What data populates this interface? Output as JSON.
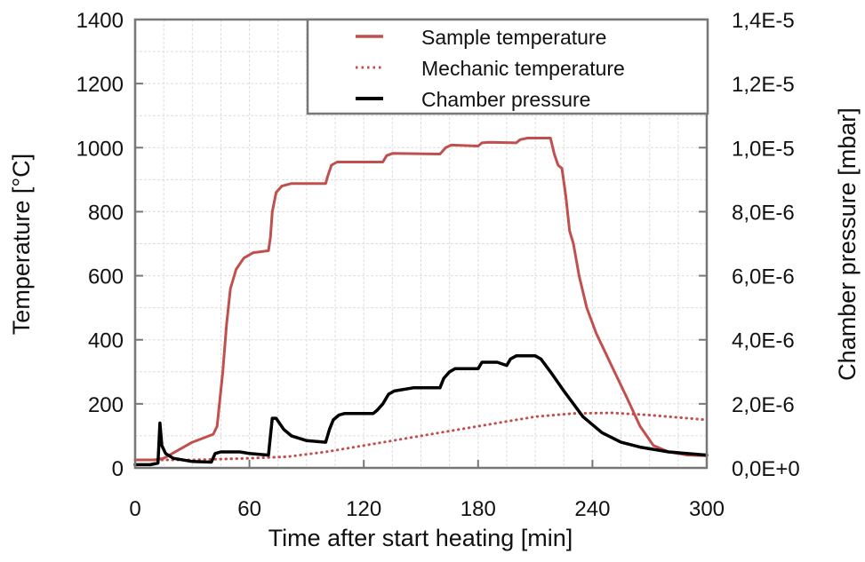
{
  "chart_data": {
    "type": "line",
    "title": "",
    "xlabel": "Time after start heating [min]",
    "ylabel": "Temperature [°C]",
    "y2label": "Chamber pressure [mbar]",
    "xlim": [
      0,
      300
    ],
    "ylim": [
      0,
      1400
    ],
    "y2lim": [
      0,
      1.4e-05
    ],
    "xticks": [
      0,
      60,
      120,
      180,
      240,
      300
    ],
    "yticks": [
      0,
      200,
      400,
      600,
      800,
      1000,
      1200,
      1400
    ],
    "y2ticks": [
      {
        "value": 0,
        "label": "0,0E+0"
      },
      {
        "value": 2e-06,
        "label": "2,0E-6"
      },
      {
        "value": 4e-06,
        "label": "4,0E-6"
      },
      {
        "value": 6e-06,
        "label": "6,0E-6"
      },
      {
        "value": 8e-06,
        "label": "8,0E-6"
      },
      {
        "value": 1e-05,
        "label": "1,0E-5"
      },
      {
        "value": 1.2e-05,
        "label": "1,2E-5"
      },
      {
        "value": 1.4e-05,
        "label": "1,4E-5"
      }
    ],
    "grid": true,
    "legend_position": "top-right",
    "series": [
      {
        "name": "Sample temperature",
        "axis": "left",
        "color": "#c0504d",
        "style": "solid",
        "x": [
          0,
          10,
          15,
          30,
          41,
          43,
          46,
          48,
          50,
          53,
          57,
          62,
          70,
          71,
          72,
          74,
          77,
          82,
          100,
          101,
          103,
          106,
          130,
          132,
          135,
          160,
          163,
          166,
          180,
          182,
          186,
          200,
          202,
          206,
          218,
          220,
          222,
          224,
          226,
          228,
          230,
          233,
          237,
          242,
          250,
          258,
          265,
          272,
          280,
          290,
          300
        ],
        "y": [
          25,
          25,
          30,
          80,
          105,
          130,
          300,
          450,
          560,
          620,
          655,
          672,
          678,
          720,
          800,
          860,
          880,
          888,
          888,
          910,
          945,
          955,
          955,
          975,
          982,
          980,
          1000,
          1008,
          1005,
          1015,
          1017,
          1015,
          1025,
          1030,
          1030,
          980,
          945,
          935,
          850,
          740,
          700,
          600,
          500,
          420,
          320,
          220,
          130,
          70,
          50,
          40,
          38
        ]
      },
      {
        "name": "Mechanic temperature",
        "axis": "left",
        "color": "#c0504d",
        "style": "dotted",
        "x": [
          0,
          30,
          60,
          80,
          100,
          120,
          150,
          180,
          210,
          230,
          250,
          270,
          300
        ],
        "y": [
          25,
          25,
          30,
          35,
          50,
          70,
          100,
          130,
          160,
          170,
          172,
          165,
          150
        ]
      },
      {
        "name": "Chamber pressure",
        "axis": "right",
        "color": "#000000",
        "style": "solid",
        "x": [
          0,
          8,
          12,
          13,
          14,
          16,
          20,
          30,
          40,
          42,
          45,
          55,
          60,
          70,
          71,
          72,
          74,
          78,
          82,
          90,
          100,
          102,
          104,
          107,
          110,
          125,
          127,
          130,
          133,
          136,
          146,
          160,
          162,
          165,
          168,
          180,
          182,
          190,
          195,
          197,
          200,
          210,
          213,
          218,
          225,
          235,
          245,
          255,
          265,
          280,
          300
        ],
        "y": [
          1e-07,
          1e-07,
          1.5e-07,
          1.4e-06,
          7e-07,
          4.5e-07,
          3e-07,
          2e-07,
          1.8e-07,
          4.5e-07,
          5e-07,
          5e-07,
          4.5e-07,
          4e-07,
          1e-06,
          1.55e-06,
          1.55e-06,
          1.2e-06,
          1e-06,
          8.5e-07,
          8e-07,
          1.2e-06,
          1.5e-06,
          1.65e-06,
          1.7e-06,
          1.7e-06,
          1.8e-06,
          2e-06,
          2.3e-06,
          2.4e-06,
          2.5e-06,
          2.5e-06,
          2.8e-06,
          3e-06,
          3.1e-06,
          3.1e-06,
          3.3e-06,
          3.3e-06,
          3.2e-06,
          3.4e-06,
          3.5e-06,
          3.5e-06,
          3.4e-06,
          3e-06,
          2.4e-06,
          1.6e-06,
          1.1e-06,
          8e-07,
          6.5e-07,
          5e-07,
          4e-07
        ]
      }
    ]
  }
}
